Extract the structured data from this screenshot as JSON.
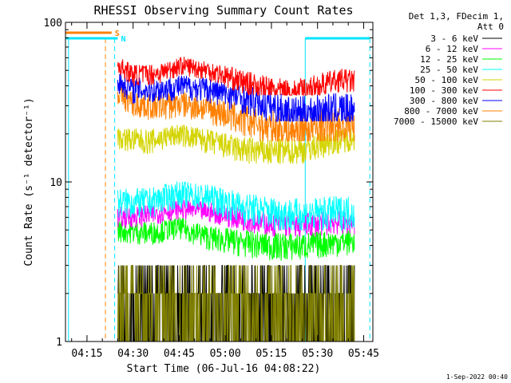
{
  "chart_data": {
    "type": "line",
    "title": "RHESSI Observing Summary Count Rates",
    "xlabel": "Start Time (06-Jul-16 04:08:22)",
    "ylabel": "Count Rate (s⁻¹ detector⁻¹)",
    "y_scale": "log",
    "ylim": [
      1,
      100
    ],
    "xlim": [
      "04:08",
      "05:48"
    ],
    "x_ticks": [
      "04:15",
      "04:30",
      "04:45",
      "05:00",
      "05:15",
      "05:30",
      "05:45"
    ],
    "y_ticks": [
      "1",
      "10",
      "100"
    ],
    "grid": false,
    "legend_position": "top-right",
    "legend_header": [
      "Det 1,3, FDecim 1,",
      "Att 0"
    ],
    "timestamp": "1-Sep-2022 00:40",
    "flags": [
      {
        "label": "S",
        "color": "#ff8000",
        "start": "04:08",
        "end": "04:23"
      },
      {
        "label": "N",
        "color": "#00e5ff",
        "start": "04:08",
        "end": "04:25"
      },
      {
        "label": "",
        "color": "#00e5ff",
        "start": "05:26",
        "end": "05:47"
      }
    ],
    "vertical_markers": [
      {
        "time": "04:21",
        "color": "#ff8000",
        "style": "dashed"
      },
      {
        "time": "04:24",
        "color": "#00e5ff",
        "style": "dashed"
      },
      {
        "time": "05:47",
        "color": "#00e5ff",
        "style": "dashed"
      },
      {
        "time": "05:26",
        "color": "#00e5ff",
        "style": "solid"
      },
      {
        "time": "04:09",
        "color": "#00e5ff",
        "style": "solid"
      }
    ],
    "series": [
      {
        "name": "3 - 6 keV",
        "color": "#000000",
        "x": [
          "04:25",
          "04:35",
          "04:45",
          "04:55",
          "05:05",
          "05:15",
          "05:25",
          "05:35",
          "05:42"
        ],
        "values": [
          2.0,
          2.2,
          2.5,
          2.4,
          2.2,
          2.1,
          2.0,
          2.1,
          2.1
        ],
        "noise": [
          1.3,
          3.0
        ]
      },
      {
        "name": "6 - 12 keV",
        "color": "#ff00ff",
        "x": [
          "04:25",
          "04:35",
          "04:45",
          "04:55",
          "05:05",
          "05:15",
          "05:25",
          "05:35",
          "05:42"
        ],
        "values": [
          6.0,
          6.2,
          6.8,
          6.5,
          5.9,
          5.5,
          5.4,
          5.6,
          5.6
        ],
        "noise": [
          4.5,
          8.0
        ]
      },
      {
        "name": "12 - 25 keV",
        "color": "#00ff00",
        "x": [
          "04:25",
          "04:35",
          "04:45",
          "04:55",
          "05:05",
          "05:15",
          "05:25",
          "05:35",
          "05:42"
        ],
        "values": [
          5.0,
          4.8,
          5.2,
          4.5,
          4.2,
          4.0,
          4.0,
          4.2,
          4.3
        ],
        "noise": [
          3.0,
          6.0
        ]
      },
      {
        "name": "25 - 50 keV",
        "color": "#00ffff",
        "x": [
          "04:25",
          "04:35",
          "04:45",
          "04:55",
          "05:05",
          "05:15",
          "05:25",
          "05:35",
          "05:42"
        ],
        "values": [
          7.5,
          7.5,
          8.5,
          8.0,
          7.0,
          6.5,
          6.2,
          6.5,
          6.6
        ],
        "noise": [
          5.0,
          11.0
        ]
      },
      {
        "name": "50 - 100 keV",
        "color": "#d4d400",
        "x": [
          "04:25",
          "04:35",
          "04:45",
          "04:55",
          "05:05",
          "05:15",
          "05:25",
          "05:35",
          "05:42"
        ],
        "values": [
          19,
          18,
          20,
          18,
          16,
          15.5,
          16,
          18,
          19
        ],
        "noise": [
          13,
          25
        ]
      },
      {
        "name": "100 - 300 keV",
        "color": "#ff0000",
        "x": [
          "04:25",
          "04:30",
          "04:38",
          "04:46",
          "04:55",
          "05:05",
          "05:15",
          "05:22",
          "05:30",
          "05:37",
          "05:42"
        ],
        "values": [
          54,
          47,
          48,
          54,
          50,
          43,
          38,
          36,
          40,
          44,
          43
        ],
        "noise": [
          35,
          62
        ]
      },
      {
        "name": "300 - 800 keV",
        "color": "#0000ff",
        "x": [
          "04:25",
          "04:30",
          "04:38",
          "04:46",
          "04:55",
          "05:05",
          "05:15",
          "05:22",
          "05:30",
          "05:37",
          "05:42"
        ],
        "values": [
          43,
          38,
          38,
          40,
          38,
          34,
          30,
          27,
          28,
          29,
          28
        ],
        "noise": [
          24,
          50
        ]
      },
      {
        "name": "800 - 7000 keV",
        "color": "#ff8000",
        "x": [
          "04:25",
          "04:30",
          "04:38",
          "04:46",
          "04:55",
          "05:05",
          "05:15",
          "05:22",
          "05:30",
          "05:37",
          "05:42"
        ],
        "values": [
          36,
          31,
          30,
          31,
          29,
          25,
          22,
          21,
          22,
          23,
          23
        ],
        "noise": [
          18,
          40
        ]
      },
      {
        "name": "7000 - 15000 keV",
        "color": "#808000",
        "x": [
          "04:25",
          "04:35",
          "04:45",
          "04:55",
          "05:05",
          "05:15",
          "05:25",
          "05:35",
          "05:42"
        ],
        "values": [
          1.5,
          1.6,
          1.8,
          1.7,
          1.6,
          1.5,
          1.6,
          1.6,
          1.6
        ],
        "noise": [
          1.0,
          2.0
        ]
      }
    ]
  }
}
